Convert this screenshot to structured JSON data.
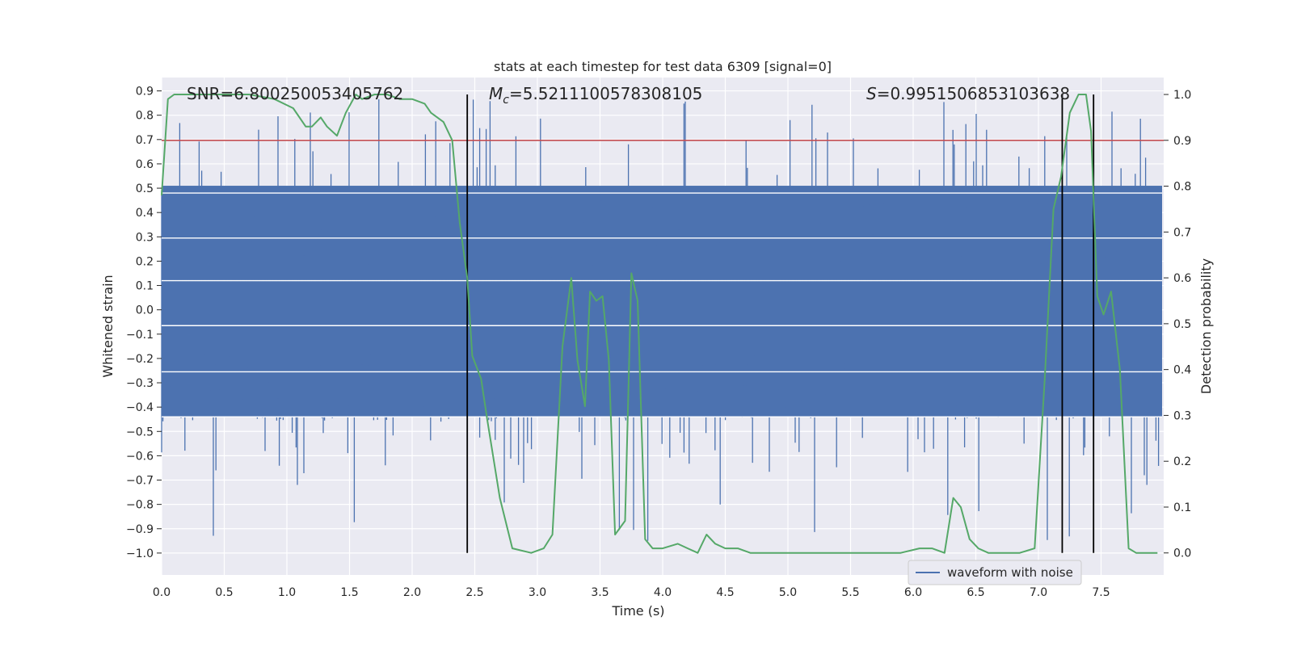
{
  "chart_data": {
    "type": "line",
    "title": "stats at each timestep for test data 6309 [signal=0]",
    "xlabel": "Time (s)",
    "ylabel": "Whitened strain",
    "y2label": "Detection probability",
    "xlim": [
      0.0,
      8.0
    ],
    "ylim": [
      -1.09,
      0.955
    ],
    "y2lim": [
      -0.048,
      1.037
    ],
    "grid": true,
    "x_ticks": [
      "0.0",
      "0.5",
      "1.0",
      "1.5",
      "2.0",
      "2.5",
      "3.0",
      "3.5",
      "4.0",
      "4.5",
      "5.0",
      "5.5",
      "6.0",
      "6.5",
      "7.0",
      "7.5"
    ],
    "y_ticks": [
      "0.9",
      "0.8",
      "0.7",
      "0.6",
      "0.5",
      "0.4",
      "0.3",
      "0.2",
      "0.1",
      "0.0",
      "−0.1",
      "−0.2",
      "−0.3",
      "−0.4",
      "−0.5",
      "−0.6",
      "−0.7",
      "−0.8",
      "−0.9",
      "−1.0"
    ],
    "y2_ticks": [
      "1.0",
      "0.9",
      "0.8",
      "0.7",
      "0.6",
      "0.5",
      "0.4",
      "0.3",
      "0.2",
      "0.1",
      "0.0"
    ],
    "annotations": {
      "snr": "SNR=6.800250053405762",
      "mc_symbol": "M",
      "mc_sub": "c",
      "mc_value": "=5.521110057830810​5",
      "s_symbol": "S",
      "s_value": "=0.9951506853103638"
    },
    "threshold": {
      "y2": 0.9,
      "color": "#c44e52"
    },
    "vertical_lines_x": [
      2.44,
      7.19,
      7.44
    ],
    "legend": {
      "label": "waveform with noise",
      "placement": "lower-right"
    },
    "colors": {
      "waveform": "#4c72b0",
      "probability": "#55a868",
      "threshold": "#c44e52",
      "vlines": "#000000",
      "background": "#eaeaf2"
    },
    "series": [
      {
        "name": "waveform with noise",
        "style": "noise",
        "core_range": [
          -0.44,
          0.51
        ],
        "spike_range": [
          -0.99,
          0.87
        ]
      },
      {
        "name": "Detection probability",
        "axis": "y2",
        "x": [
          0.0,
          0.05,
          0.1,
          0.2,
          0.3,
          0.5,
          0.7,
          0.9,
          1.05,
          1.15,
          1.2,
          1.27,
          1.32,
          1.4,
          1.47,
          1.55,
          1.6,
          1.7,
          1.8,
          1.9,
          2.0,
          2.1,
          2.15,
          2.25,
          2.32,
          2.38,
          2.44,
          2.48,
          2.55,
          2.6,
          2.7,
          2.8,
          2.95,
          3.05,
          3.12,
          3.2,
          3.27,
          3.32,
          3.38,
          3.42,
          3.47,
          3.52,
          3.57,
          3.62,
          3.7,
          3.75,
          3.8,
          3.86,
          3.92,
          4.0,
          4.12,
          4.2,
          4.28,
          4.35,
          4.42,
          4.5,
          4.6,
          4.7,
          4.8,
          5.0,
          5.5,
          5.9,
          6.05,
          6.15,
          6.25,
          6.32,
          6.38,
          6.45,
          6.52,
          6.6,
          6.7,
          6.85,
          6.97,
          7.05,
          7.12,
          7.18,
          7.25,
          7.32,
          7.38,
          7.42,
          7.47,
          7.52,
          7.58,
          7.65,
          7.72,
          7.78,
          7.85,
          7.95
        ],
        "y": [
          0.78,
          0.99,
          1.0,
          1.0,
          1.0,
          1.0,
          1.0,
          0.99,
          0.97,
          0.93,
          0.93,
          0.95,
          0.93,
          0.91,
          0.96,
          1.0,
          0.99,
          1.0,
          1.0,
          0.99,
          0.99,
          0.98,
          0.96,
          0.94,
          0.9,
          0.72,
          0.6,
          0.43,
          0.38,
          0.29,
          0.12,
          0.01,
          0.0,
          0.01,
          0.04,
          0.45,
          0.6,
          0.42,
          0.32,
          0.57,
          0.55,
          0.56,
          0.42,
          0.04,
          0.07,
          0.61,
          0.55,
          0.03,
          0.01,
          0.01,
          0.02,
          0.01,
          0.0,
          0.04,
          0.02,
          0.01,
          0.01,
          0.0,
          0.0,
          0.0,
          0.0,
          0.0,
          0.01,
          0.01,
          0.0,
          0.12,
          0.1,
          0.03,
          0.01,
          0.0,
          0.0,
          0.0,
          0.01,
          0.38,
          0.75,
          0.82,
          0.96,
          1.0,
          1.0,
          0.92,
          0.56,
          0.52,
          0.57,
          0.4,
          0.01,
          0.0,
          0.0,
          0.0
        ]
      }
    ]
  }
}
